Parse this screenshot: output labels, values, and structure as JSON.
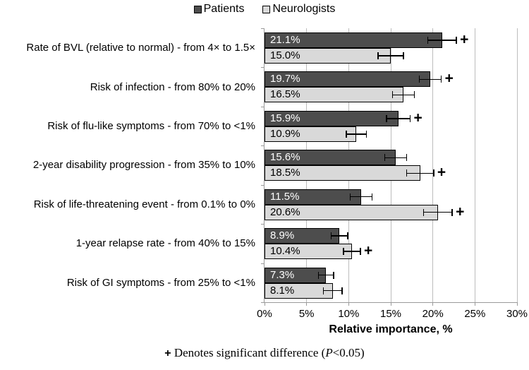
{
  "figure": {
    "legend": {
      "items": [
        {
          "label": "Patients"
        },
        {
          "label": "Neurologists"
        }
      ]
    },
    "xlabel": "Relative importance, %",
    "footnote": {
      "marker": "+",
      "text_before_p": " Denotes significant difference (",
      "p_symbol": "P",
      "text_after_p": "<0.05)"
    }
  },
  "chart_data": {
    "type": "bar",
    "orientation": "horizontal",
    "title": "",
    "xlabel": "Relative importance, %",
    "ylabel": "",
    "xlim": [
      0,
      30
    ],
    "xticks": [
      0,
      5,
      10,
      15,
      20,
      25,
      30
    ],
    "xticklabels": [
      "0%",
      "5%",
      "10%",
      "15%",
      "20%",
      "25%",
      "30%"
    ],
    "grid": true,
    "legend_position": "top",
    "significance_marker": "+",
    "significance_note": "+ Denotes significant difference (P<0.05)",
    "categories": [
      "Rate of BVL (relative to normal) - from 4× to 1.5×",
      "Risk of infection - from 80% to 20%",
      "Risk of flu-like symptoms - from 70% to <1%",
      "2-year disability progression - from 35% to 10%",
      "Risk of life-threatening event - from 0.1% to 0%",
      "1-year relapse rate - from 40% to 15%",
      "Risk of GI symptoms - from 25% to <1%"
    ],
    "series": [
      {
        "name": "Patients",
        "color": "#4d4d4d",
        "label_color": "#ffffff",
        "values": [
          21.1,
          19.7,
          15.9,
          15.6,
          11.5,
          8.9,
          7.3
        ],
        "value_labels": [
          "21.1%",
          "19.7%",
          "15.9%",
          "15.6%",
          "11.5%",
          "8.9%",
          "7.3%"
        ],
        "errors": [
          1.7,
          1.3,
          1.4,
          1.3,
          1.3,
          1.0,
          0.9
        ],
        "significant": [
          true,
          true,
          true,
          false,
          false,
          false,
          false
        ]
      },
      {
        "name": "Neurologists",
        "color": "#d9d9d9",
        "label_color": "#000000",
        "values": [
          15.0,
          16.5,
          10.9,
          18.5,
          20.6,
          10.4,
          8.1
        ],
        "value_labels": [
          "15.0%",
          "16.5%",
          "10.9%",
          "18.5%",
          "20.6%",
          "10.4%",
          "8.1%"
        ],
        "errors": [
          1.5,
          1.3,
          1.2,
          1.6,
          1.7,
          1.0,
          1.1
        ],
        "significant": [
          false,
          false,
          false,
          true,
          true,
          true,
          false
        ]
      }
    ]
  }
}
